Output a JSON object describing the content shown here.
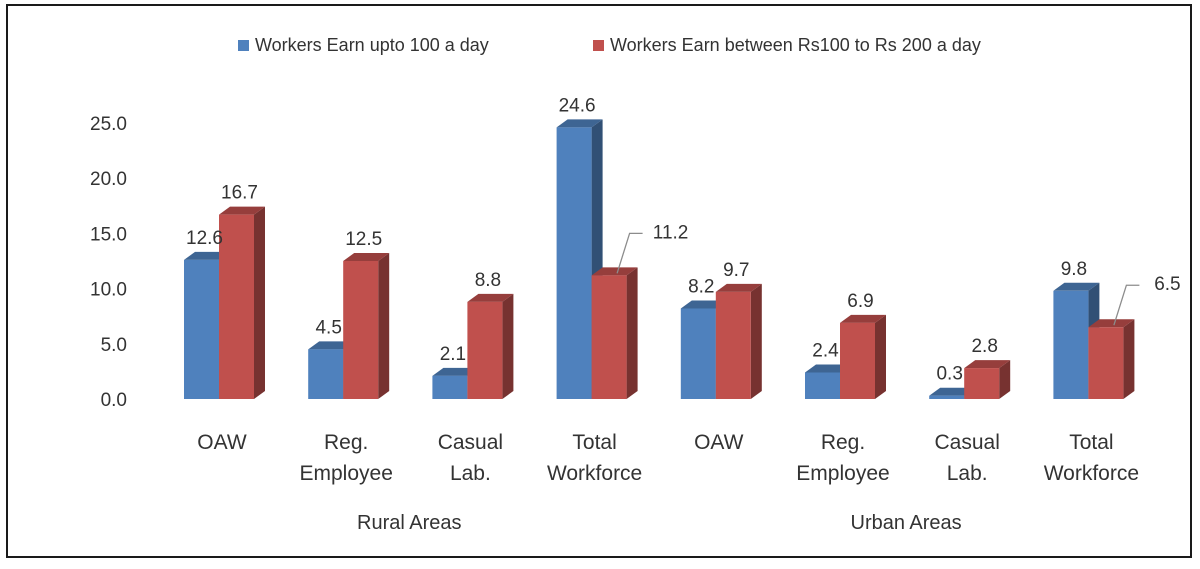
{
  "chart_data": {
    "type": "bar",
    "style": "3d-clustered-column",
    "title": "",
    "xlabel": "",
    "ylabel": "",
    "ylim": [
      0,
      25
    ],
    "yticks": [
      "0.0",
      "5.0",
      "10.0",
      "15.0",
      "20.0",
      "25.0"
    ],
    "grid": false,
    "legend_position": "top",
    "categories": [
      [
        "OAW"
      ],
      [
        "Reg.",
        "Employee"
      ],
      [
        "Casual",
        "Lab."
      ],
      [
        "Total",
        "Workforce"
      ],
      [
        "OAW"
      ],
      [
        "Reg.",
        "Employee"
      ],
      [
        "Casual",
        "Lab."
      ],
      [
        "Total",
        "Workforce"
      ]
    ],
    "groups": [
      {
        "label": "Rural Areas",
        "start": 0,
        "end": 3
      },
      {
        "label": "Urban Areas",
        "start": 4,
        "end": 7
      }
    ],
    "series": [
      {
        "name": "Workers Earn upto 100 a day",
        "color": "#4f81bd",
        "values": [
          12.6,
          4.5,
          2.1,
          24.6,
          8.2,
          2.4,
          0.3,
          9.8
        ],
        "labels": [
          "12.6",
          "4.5",
          "2.1",
          "24.6",
          "8.2",
          "2.4",
          "0.3",
          "9.8"
        ]
      },
      {
        "name": "Workers Earn between Rs100 to Rs 200 a day",
        "color": "#c0504d",
        "values": [
          16.7,
          12.5,
          8.8,
          11.2,
          9.7,
          6.9,
          2.8,
          6.5
        ],
        "labels": [
          "16.7",
          "12.5",
          "8.8",
          "11.2",
          "9.7",
          "6.9",
          "2.8",
          "6.5"
        ]
      }
    ]
  }
}
